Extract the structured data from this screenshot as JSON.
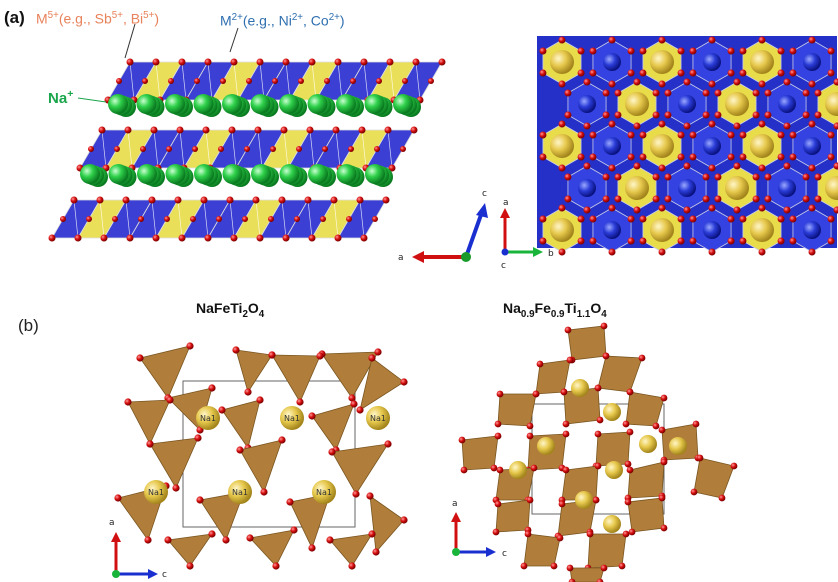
{
  "panel_a": {
    "label": "(a)",
    "m5_text": "M5+(e.g., Sb5+, Bi5+)",
    "m2_text": "M2+(e.g., Ni2+, Co2+)",
    "na_label": "Na+",
    "axes_side": {
      "a": "a",
      "c": "c",
      "b": "b"
    },
    "axes_top": {
      "a": "a",
      "b": "b",
      "c": "c"
    }
  },
  "panel_b": {
    "label": "(b)",
    "left_title": "NaFeTi2O4",
    "right_title": "Na0.9Fe0.9Ti1.1O4",
    "site_label": "Na1",
    "axes": {
      "a": "a",
      "c": "c"
    }
  },
  "colors": {
    "yellow_octahedra": "#e8dc4a",
    "blue_octahedra": "#2a2fd0",
    "sodium": "#1fbf3a",
    "oxygen": "#d01010",
    "brown_octahedra": "#b07e3a",
    "sphere_gold": "#e7cf57"
  }
}
